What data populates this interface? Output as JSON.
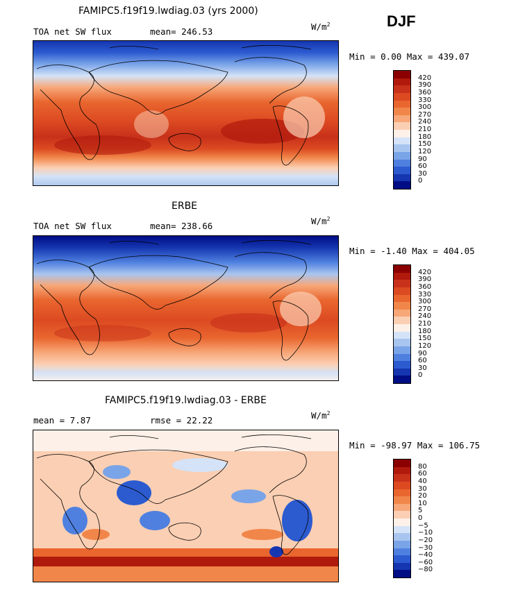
{
  "season": "DJF",
  "panels": [
    {
      "title": "FAMIPC5.f19f19.lwdiag.03 (yrs 2000)",
      "variable": "TOA net SW flux",
      "stat1": "mean= 246.53",
      "stat2": "",
      "units_base": "W/m",
      "units_exp": "2",
      "minmax": "Min =   0.00 Max = 439.07",
      "colorbar_labels": [
        "420",
        "390",
        "360",
        "330",
        "300",
        "270",
        "240",
        "210",
        "180",
        "150",
        "120",
        "90",
        "60",
        "30",
        "0"
      ],
      "colorbar_colors": [
        "#8b0000",
        "#b01a0d",
        "#c8311a",
        "#dc4a22",
        "#e9662f",
        "#f1864a",
        "#f7a778",
        "#fbcfb3",
        "#fdf0e8",
        "#d4e3f7",
        "#a8c5ef",
        "#7aa4e8",
        "#4f80e0",
        "#2c5bd0",
        "#1536b0",
        "#000d85"
      ]
    },
    {
      "title": "ERBE",
      "variable": "TOA net SW flux",
      "stat1": "mean= 238.66",
      "stat2": "",
      "units_base": "W/m",
      "units_exp": "2",
      "minmax": "Min =  -1.40 Max = 404.05",
      "colorbar_labels": [
        "420",
        "390",
        "360",
        "330",
        "300",
        "270",
        "240",
        "210",
        "180",
        "150",
        "120",
        "90",
        "60",
        "30",
        "0"
      ],
      "colorbar_colors": [
        "#8b0000",
        "#b01a0d",
        "#c8311a",
        "#dc4a22",
        "#e9662f",
        "#f1864a",
        "#f7a778",
        "#fbcfb3",
        "#fdf0e8",
        "#d4e3f7",
        "#a8c5ef",
        "#7aa4e8",
        "#4f80e0",
        "#2c5bd0",
        "#1536b0",
        "#000d85"
      ]
    },
    {
      "title": "FAMIPC5.f19f19.lwdiag.03 - ERBE",
      "variable": "mean =   7.87",
      "stat1": "rmse =  22.22",
      "stat2": "",
      "units_base": "W/m",
      "units_exp": "2",
      "minmax": "Min = -98.97 Max = 106.75",
      "colorbar_labels": [
        "80",
        "60",
        "40",
        "30",
        "20",
        "10",
        "5",
        "0",
        "−5",
        "−10",
        "−20",
        "−30",
        "−40",
        "−60",
        "−80"
      ],
      "colorbar_colors": [
        "#8b0000",
        "#b01a0d",
        "#c8311a",
        "#dc4a22",
        "#e9662f",
        "#f1864a",
        "#f7a778",
        "#fbcfb3",
        "#fdf0e8",
        "#d4e3f7",
        "#a8c5ef",
        "#7aa4e8",
        "#4f80e0",
        "#2c5bd0",
        "#1536b0",
        "#000d85"
      ]
    }
  ]
}
